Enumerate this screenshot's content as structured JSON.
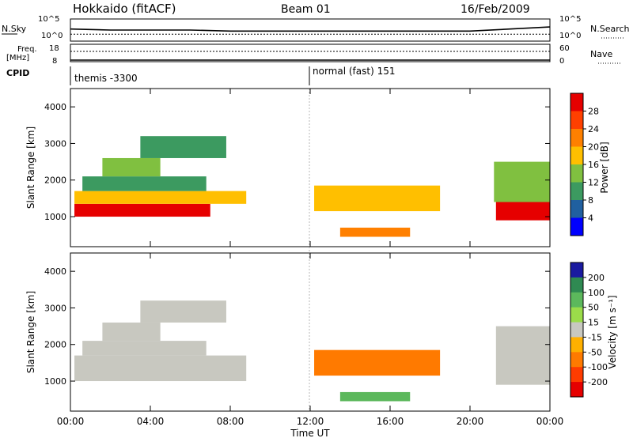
{
  "header": {
    "station": "Hokkaido (fitACF)",
    "beam": "Beam 01",
    "date": "16/Feb/2009"
  },
  "top_panels": {
    "nsky_label": "N.Sky",
    "nsky_ticks": [
      "10^5",
      "10^0"
    ],
    "nsearch_label": "N.Search",
    "nsearch_ticks": [
      "10^5",
      "10^0"
    ],
    "freq_label_1": "Freq.",
    "freq_label_2": "[MHz]",
    "freq_ticks": [
      "18",
      "8"
    ],
    "nave_label": "Nave",
    "nave_ticks": [
      "60",
      "0"
    ],
    "cpid_label": "CPID",
    "cpid_segments": [
      {
        "label": "themis -3300",
        "start_hour": 0
      },
      {
        "label": "normal (fast) 151",
        "start_hour": 12
      }
    ]
  },
  "axes": {
    "x_label": "Time UT",
    "x_ticks": [
      "00:00",
      "04:00",
      "08:00",
      "12:00",
      "16:00",
      "20:00",
      "00:00"
    ],
    "x_range_hours": [
      0,
      24
    ],
    "y_label": "Slant Range [km]",
    "y_ticks": [
      "1000",
      "2000",
      "3000",
      "4000"
    ],
    "y_range_km": [
      180,
      4500
    ]
  },
  "colorbars": {
    "power": {
      "label": "Power [dB]",
      "ticks": [
        "28",
        "24",
        "20",
        "16",
        "12",
        "8",
        "4"
      ],
      "colors": [
        "#e60000",
        "#ff4000",
        "#ff8000",
        "#ffbf00",
        "#80c040",
        "#3c9a60",
        "#2060a0",
        "#0000ff"
      ]
    },
    "velocity": {
      "label": "Velocity [m s⁻¹]",
      "ticks": [
        "200",
        "100",
        "50",
        "15",
        "-15",
        "-50",
        "-100",
        "-200"
      ],
      "colors": [
        "#1a1aa0",
        "#2f8a52",
        "#5cb85c",
        "#9bdc4a",
        "#c8c8c0",
        "#ffb000",
        "#ff7a00",
        "#ff3c00",
        "#e60000"
      ]
    }
  },
  "chart_data": [
    {
      "type": "line",
      "title": "N.Sky / N.Search",
      "x_hours": [
        0,
        2,
        4,
        6,
        8,
        10,
        12,
        14,
        16,
        18,
        20,
        22,
        24
      ],
      "series": [
        {
          "name": "N.Sky",
          "values": [
            0.55,
            0.5,
            0.5,
            0.5,
            0.45,
            0.45,
            0.45,
            0.45,
            0.45,
            0.45,
            0.45,
            0.55,
            0.65
          ]
        },
        {
          "name": "N.Search",
          "values": [
            0.3,
            0.3,
            0.3,
            0.3,
            0.3,
            0.3,
            0.3,
            0.3,
            0.3,
            0.3,
            0.3,
            0.3,
            0.3
          ]
        }
      ]
    },
    {
      "type": "line",
      "title": "Freq. / Nave",
      "x_hours": [
        0,
        4,
        8,
        12,
        16,
        20,
        24
      ],
      "series": [
        {
          "name": "Freq.",
          "values": [
            8.5,
            8.5,
            8.5,
            8.5,
            8.5,
            8.5,
            8.5
          ]
        },
        {
          "name": "Nave",
          "values": [
            36,
            36,
            36,
            36,
            36,
            36,
            36
          ]
        }
      ]
    },
    {
      "type": "heatmap",
      "title": "Power [dB]",
      "x_range_hours": [
        0,
        24
      ],
      "y_range_km": [
        180,
        4500
      ],
      "regions": [
        {
          "t0": 0.2,
          "t1": 7.0,
          "r0": 1000,
          "r1": 1350,
          "value": 28
        },
        {
          "t0": 0.2,
          "t1": 8.8,
          "r0": 1350,
          "r1": 1700,
          "value": 14
        },
        {
          "t0": 0.6,
          "t1": 6.8,
          "r0": 1700,
          "r1": 2100,
          "value": 8
        },
        {
          "t0": 1.6,
          "t1": 4.5,
          "r0": 2100,
          "r1": 2600,
          "value": 10
        },
        {
          "t0": 3.5,
          "t1": 7.8,
          "r0": 2600,
          "r1": 3200,
          "value": 6
        },
        {
          "t0": 12.2,
          "t1": 18.5,
          "r0": 1150,
          "r1": 1850,
          "value": 14
        },
        {
          "t0": 13.5,
          "t1": 17.0,
          "r0": 450,
          "r1": 700,
          "value": 20
        },
        {
          "t0": 21.3,
          "t1": 24.0,
          "r0": 900,
          "r1": 1400,
          "value": 26
        },
        {
          "t0": 21.2,
          "t1": 24.0,
          "r0": 1400,
          "r1": 2500,
          "value": 10
        }
      ]
    },
    {
      "type": "heatmap",
      "title": "Velocity [m s⁻¹]",
      "x_range_hours": [
        0,
        24
      ],
      "y_range_km": [
        180,
        4500
      ],
      "regions": [
        {
          "t0": 0.2,
          "t1": 8.8,
          "r0": 1000,
          "r1": 1700,
          "value": 0
        },
        {
          "t0": 0.6,
          "t1": 6.8,
          "r0": 1700,
          "r1": 2100,
          "value": 0
        },
        {
          "t0": 1.6,
          "t1": 4.5,
          "r0": 2100,
          "r1": 2600,
          "value": 0
        },
        {
          "t0": 3.5,
          "t1": 7.8,
          "r0": 2600,
          "r1": 3200,
          "value": 0
        },
        {
          "t0": 12.2,
          "t1": 18.5,
          "r0": 1150,
          "r1": 1850,
          "value": -50
        },
        {
          "t0": 13.5,
          "t1": 17.0,
          "r0": 450,
          "r1": 700,
          "value": 40
        },
        {
          "t0": 21.3,
          "t1": 24.0,
          "r0": 900,
          "r1": 2500,
          "value": 0
        }
      ]
    }
  ]
}
